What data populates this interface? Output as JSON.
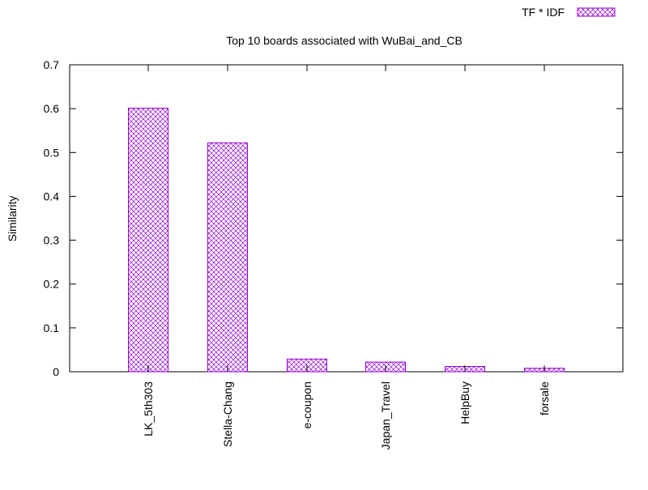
{
  "chart_data": {
    "type": "bar",
    "title": "Top 10 boards associated with WuBai_and_CB",
    "xlabel": "",
    "ylabel": "Similarity",
    "ylim": [
      0,
      0.7
    ],
    "yticks": [
      "0",
      "0.1",
      "0.2",
      "0.3",
      "0.4",
      "0.5",
      "0.6",
      "0.7"
    ],
    "categories": [
      "LK_5th303",
      "Stella-Chang",
      "e-coupon",
      "Japan_Travel",
      "HelpBuy",
      "forsale"
    ],
    "series": [
      {
        "name": "TF * IDF",
        "values": [
          0.601,
          0.522,
          0.029,
          0.022,
          0.012,
          0.008
        ]
      }
    ],
    "legend_position": "top-right",
    "grid": false,
    "bar_pattern": "crosshatch",
    "colors": {
      "bar_stroke": "#9400d3",
      "axis": "#000000",
      "background": "#ffffff"
    }
  }
}
